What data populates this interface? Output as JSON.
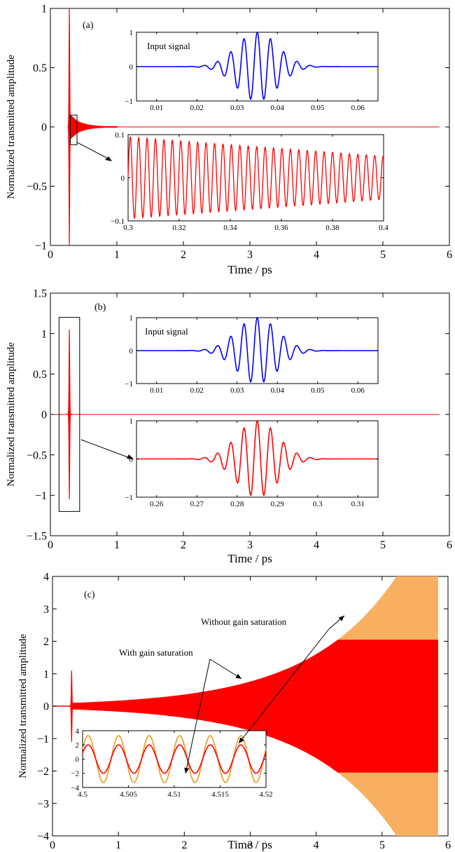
{
  "chart_data": [
    {
      "panel": "(a)",
      "type": "line",
      "title": "",
      "xlabel": "Time / ps",
      "ylabel": "Normalized transmitted amplitude",
      "xlim": [
        0,
        6
      ],
      "ylim": [
        -1,
        1
      ],
      "xticks": [
        "0",
        "1",
        "2",
        "3",
        "4",
        "5",
        "6"
      ],
      "yticks": [
        "1",
        "0.5",
        "0",
        "−0.5",
        "−1"
      ],
      "series": [
        {
          "color": "#ff0000",
          "pulse": {
            "t0": 0.285,
            "peak": 1.0
          },
          "tail": {
            "start": 0.3,
            "amp_start": 0.1,
            "amp_at_0_4": 0.05,
            "decay_end": 1.0
          },
          "flat_after_ps": 1.0,
          "end_ps": 5.85
        }
      ],
      "zoom_box": {
        "x": [
          0.3,
          0.4
        ],
        "y": [
          -0.15,
          0.1
        ]
      },
      "insets": [
        {
          "label": "Input signal",
          "color": "#0000ff",
          "xlim": [
            0.005,
            0.065
          ],
          "ylim": [
            -1,
            1
          ],
          "xticks": [
            "0.01",
            "0.02",
            "0.03",
            "0.04",
            "0.05",
            "0.06"
          ],
          "yticks": [
            "1",
            "0",
            "−1"
          ],
          "signal": {
            "center": 0.035,
            "period": 0.0033,
            "width": 0.0072,
            "amp": 1.0
          }
        },
        {
          "label": "",
          "color": "#ff0000",
          "xlim": [
            0.3,
            0.4
          ],
          "ylim": [
            -0.1,
            0.1
          ],
          "xticks": [
            "0.3",
            "0.32",
            "0.34",
            "0.36",
            "0.38",
            "0.4"
          ],
          "yticks": [
            "0.1",
            "0",
            "−0.1"
          ],
          "signal": {
            "period": 0.0033,
            "amp_start": 0.095,
            "amp_end": 0.05,
            "phase_start": 0.3
          }
        }
      ]
    },
    {
      "panel": "(b)",
      "type": "line",
      "title": "",
      "xlabel": "Time / ps",
      "ylabel": "Normalized transmitted amplitude",
      "xlim": [
        0,
        6
      ],
      "ylim": [
        -1.5,
        1.5
      ],
      "xticks": [
        "0",
        "1",
        "2",
        "3",
        "4",
        "5",
        "6"
      ],
      "yticks": [
        "1.5",
        "1",
        "0.5",
        "0",
        "−0.5",
        "−1",
        "−1.5"
      ],
      "series": [
        {
          "color": "#ff0000",
          "pulse": {
            "t0": 0.285,
            "peak": 1.05
          },
          "end_ps": 5.85
        }
      ],
      "zoom_box": {
        "x": [
          0.13,
          0.44
        ],
        "y": [
          -1.2,
          1.2
        ]
      },
      "insets": [
        {
          "label": "Input signal",
          "color": "#0000ff",
          "xlim": [
            0.005,
            0.065
          ],
          "ylim": [
            -1,
            1
          ],
          "xticks": [
            "0.01",
            "0.02",
            "0.03",
            "0.04",
            "0.05",
            "0.06"
          ],
          "yticks": [
            "1",
            "0",
            "−1"
          ],
          "signal": {
            "center": 0.035,
            "period": 0.0033,
            "width": 0.0072,
            "amp": 1.0
          }
        },
        {
          "label": "",
          "color": "#ff0000",
          "xlim": [
            0.255,
            0.315
          ],
          "ylim": [
            -1,
            1
          ],
          "xticks": [
            "0.26",
            "0.27",
            "0.28",
            "0.29",
            "0.3",
            "0.31"
          ],
          "yticks": [
            "1",
            "0",
            "−1"
          ],
          "signal": {
            "center": 0.285,
            "period": 0.0033,
            "width": 0.0072,
            "amp": 1.0
          }
        }
      ]
    },
    {
      "panel": "(c)",
      "type": "area",
      "title": "",
      "xlabel": "Time / ps",
      "ylabel": "Normalized transmitted amplitude",
      "xlim": [
        0,
        6
      ],
      "ylim": [
        -4,
        4
      ],
      "xticks": [
        "0",
        "1",
        "2",
        "3",
        "4",
        "5",
        "6"
      ],
      "yticks": [
        "4",
        "3",
        "2",
        "1",
        "0",
        "−1",
        "−2",
        "−3",
        "−4"
      ],
      "series": [
        {
          "name": "Without gain saturation",
          "color": "#f8b060",
          "envelope": {
            "start_t": 0.3,
            "start_amp": 0.1,
            "grow_rate": 0.75,
            "end_t": 5.85
          }
        },
        {
          "name": "With gain saturation",
          "color": "#ff0000",
          "envelope": {
            "start_t": 0.3,
            "start_amp": 0.1,
            "grow_rate": 0.75,
            "saturation": 2.05,
            "end_t": 5.85
          }
        }
      ],
      "spike": {
        "t0": 0.29,
        "peak": 1.1
      },
      "insets": [
        {
          "label": "",
          "xlim": [
            4.5,
            4.52
          ],
          "ylim": [
            -4,
            4
          ],
          "xticks": [
            "4.5",
            "4.505",
            "4.51",
            "4.515",
            "4.52"
          ],
          "yticks": [
            "4",
            "2",
            "0",
            "−2",
            "−4"
          ],
          "period": 0.00333,
          "signals": [
            {
              "color": "#e89a20",
              "amp": 3.3
            },
            {
              "color": "#ff0000",
              "amp": 2.0
            }
          ]
        }
      ],
      "annotations": [
        "Without gain saturation",
        "With gain saturation"
      ]
    }
  ]
}
